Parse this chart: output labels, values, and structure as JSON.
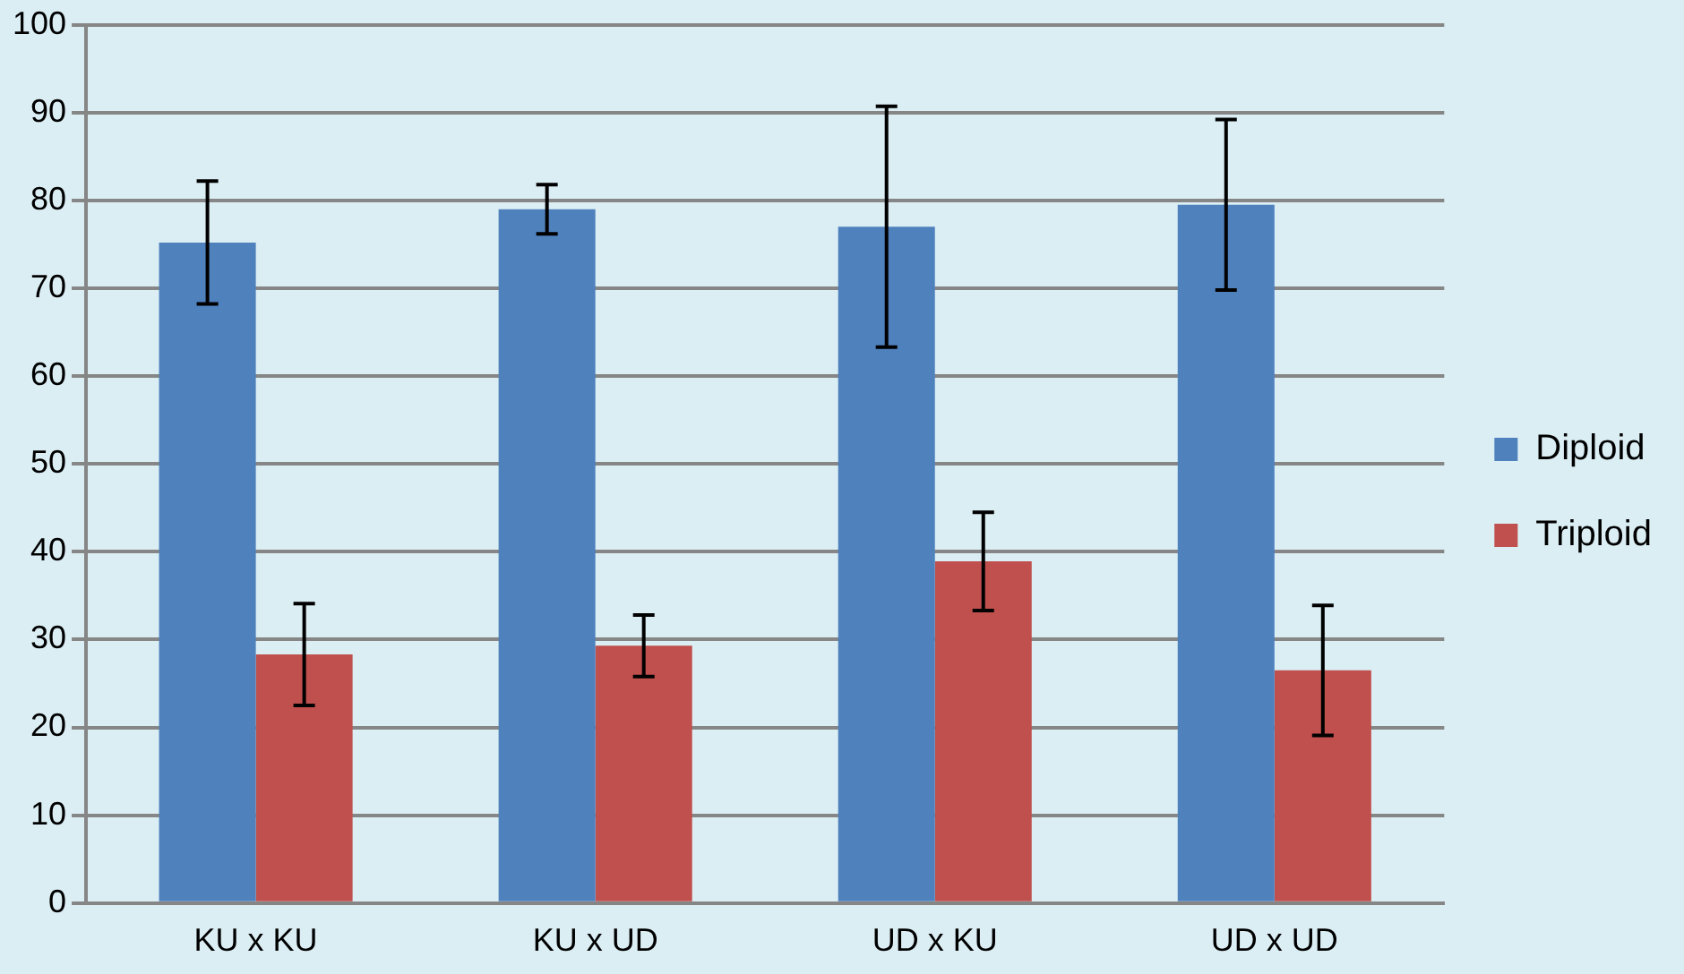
{
  "chart_data": {
    "type": "bar",
    "categories": [
      "KU x KU",
      "KU x UD",
      "UD x KU",
      "UD x UD"
    ],
    "series": [
      {
        "name": "Diploid",
        "color": "#4f81bd",
        "values": [
          75.2,
          79,
          77,
          79.5
        ],
        "errors": [
          7,
          2.8,
          13.7,
          9.7
        ]
      },
      {
        "name": "Triploid",
        "color": "#c0504d",
        "values": [
          28.3,
          29.3,
          38.9,
          26.5
        ],
        "errors": [
          5.8,
          3.5,
          5.6,
          7.4
        ]
      }
    ],
    "ylim": [
      0,
      100
    ],
    "yticks": [
      0,
      10,
      20,
      30,
      40,
      50,
      60,
      70,
      80,
      90,
      100
    ],
    "grid": "y",
    "legend": "right"
  }
}
